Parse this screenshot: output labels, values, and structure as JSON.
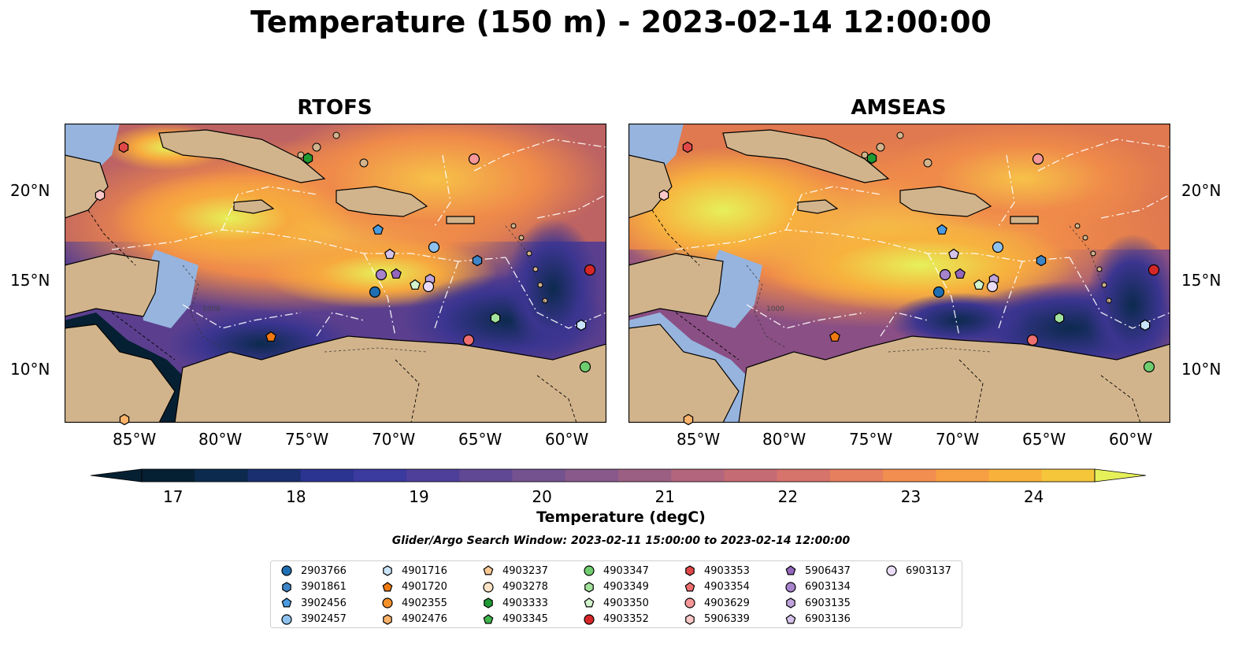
{
  "title": "Temperature (150 m) - 2023-02-14 12:00:00",
  "panels": [
    {
      "title": "RTOFS"
    },
    {
      "title": "AMSEAS"
    }
  ],
  "lon_ticks": [
    "85°W",
    "80°W",
    "75°W",
    "70°W",
    "65°W",
    "60°W"
  ],
  "lat_ticks": [
    "20°N",
    "15°N",
    "10°N"
  ],
  "contour_label": "1000",
  "colorbar": {
    "label": "Temperature (degC)",
    "ticks": [
      "17",
      "18",
      "19",
      "20",
      "21",
      "22",
      "23",
      "24"
    ],
    "min": 16.75,
    "max": 24.5,
    "step": 0.5
  },
  "search_window": "Glider/Argo Search Window: 2023-02-11 15:00:00 to 2023-02-14 12:00:00",
  "legend": [
    {
      "id": "2903766",
      "marker": "circle",
      "color": "#1f6fb2"
    },
    {
      "id": "3901861",
      "marker": "hexagon",
      "color": "#3d85c6"
    },
    {
      "id": "3902456",
      "marker": "pentagon",
      "color": "#4a9be0"
    },
    {
      "id": "3902457",
      "marker": "circle",
      "color": "#8ec1ee"
    },
    {
      "id": "4901716",
      "marker": "hexagon",
      "color": "#c9e4fa"
    },
    {
      "id": "4901720",
      "marker": "pentagon",
      "color": "#f07a10"
    },
    {
      "id": "4902355",
      "marker": "circle",
      "color": "#f5902a"
    },
    {
      "id": "4902476",
      "marker": "hexagon",
      "color": "#fbb36a"
    },
    {
      "id": "4903237",
      "marker": "pentagon",
      "color": "#fcc993"
    },
    {
      "id": "4903278",
      "marker": "circle",
      "color": "#fde3c6"
    },
    {
      "id": "4903333",
      "marker": "hexagon",
      "color": "#1f9a34"
    },
    {
      "id": "4903345",
      "marker": "pentagon",
      "color": "#3fb54b"
    },
    {
      "id": "4903347",
      "marker": "circle",
      "color": "#6fcd6f"
    },
    {
      "id": "4903349",
      "marker": "hexagon",
      "color": "#a3e29c"
    },
    {
      "id": "4903350",
      "marker": "pentagon",
      "color": "#d2f3cb"
    },
    {
      "id": "4903352",
      "marker": "circle",
      "color": "#d62728"
    },
    {
      "id": "4903353",
      "marker": "hexagon",
      "color": "#e04848"
    },
    {
      "id": "4903354",
      "marker": "pentagon",
      "color": "#ef6f6f"
    },
    {
      "id": "4903629",
      "marker": "circle",
      "color": "#f79797"
    },
    {
      "id": "5906339",
      "marker": "hexagon",
      "color": "#fbc7c7"
    },
    {
      "id": "5906437",
      "marker": "pentagon",
      "color": "#9467bd"
    },
    {
      "id": "6903134",
      "marker": "circle",
      "color": "#a783cc"
    },
    {
      "id": "6903135",
      "marker": "hexagon",
      "color": "#bfa3db"
    },
    {
      "id": "6903136",
      "marker": "pentagon",
      "color": "#d6c3ec"
    },
    {
      "id": "6903137",
      "marker": "circle",
      "color": "#eadcf6"
    }
  ],
  "colors": {
    "land": "#d2b48c",
    "shelf": "#96b4de",
    "cold": "#062033",
    "warm": "#e6f059"
  }
}
